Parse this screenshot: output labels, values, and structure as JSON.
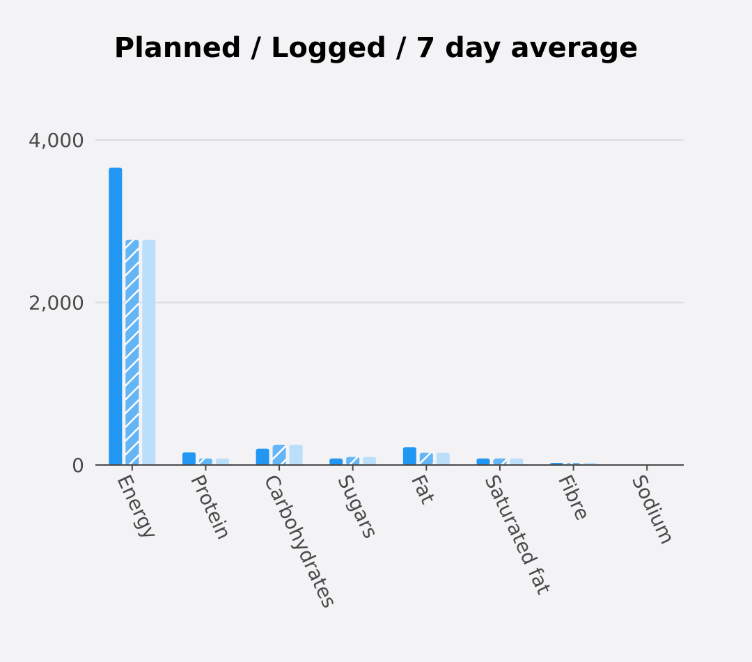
{
  "chart_data": {
    "type": "bar",
    "title": "Planned / Logged / 7 day average",
    "xlabel": "",
    "ylabel": "",
    "categories": [
      "Energy",
      "Protein",
      "Carbohydrates",
      "Sugars",
      "Fat",
      "Saturated fat",
      "Fibre",
      "Sodium"
    ],
    "series": [
      {
        "values": [
          3660,
          155,
          200,
          80,
          220,
          80,
          15,
          0
        ],
        "color": "#2196f3",
        "pattern": "solid"
      },
      {
        "values": [
          2770,
          80,
          250,
          100,
          150,
          80,
          5,
          0
        ],
        "color": "#64b5f6",
        "pattern": "hatched"
      },
      {
        "values": [
          2770,
          80,
          250,
          100,
          150,
          80,
          5,
          0
        ],
        "color": "#bbdefb",
        "pattern": "solid"
      }
    ],
    "ylim": [
      0,
      4000
    ],
    "yticks": [
      0,
      2000,
      4000
    ],
    "ytick_labels": [
      "0",
      "2,000",
      "4,000"
    ],
    "grid": true,
    "legend": "none"
  }
}
